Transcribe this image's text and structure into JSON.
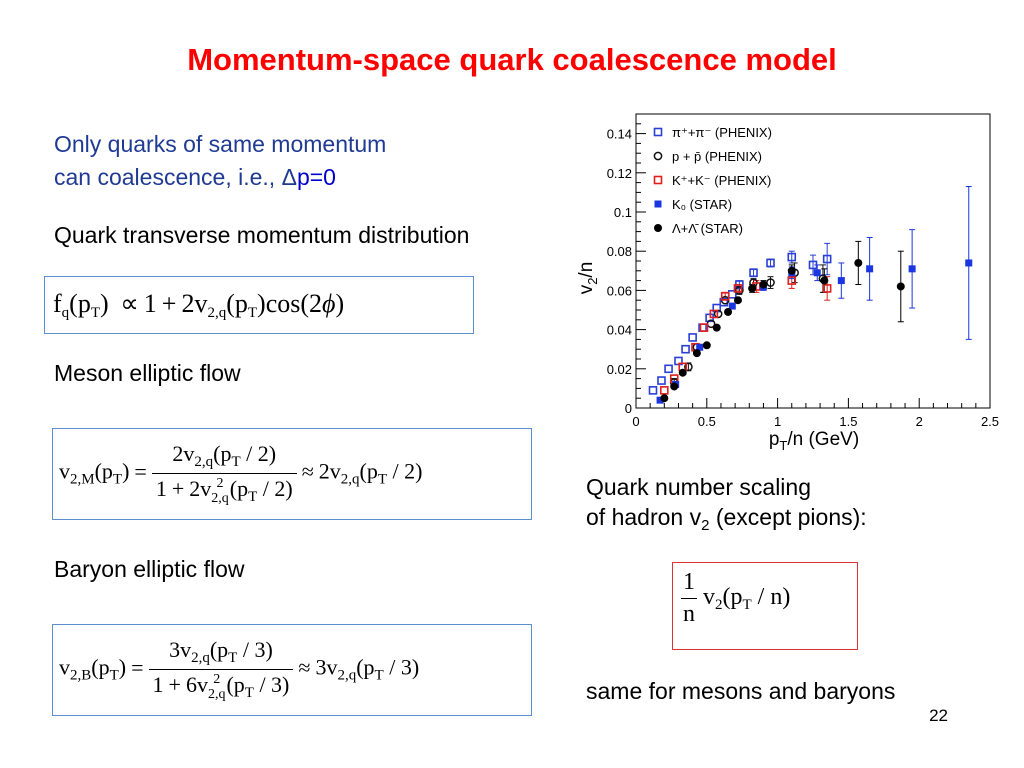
{
  "slide": {
    "title": "Momentum-space quark coalescence model",
    "intro_line1": "Only quarks of same momentum",
    "intro_line2_pre": "can coalescence, i.e., Δ",
    "intro_line2_post": "p=0",
    "quark_label": "Quark transverse momentum distribution",
    "meson_label": "Meson elliptic flow",
    "baryon_label": "Baryon elliptic flow",
    "scaling_line1": "Quark number scaling",
    "scaling_line2_pre": "of hadron v",
    "scaling_line2_sub": "2",
    "scaling_line2_post": " (except pions):",
    "same_label": "same for mesons and baryons",
    "page_number": "22",
    "accent_color": "#ff0000",
    "text_blue": "#1f3a93"
  },
  "chart_data": {
    "type": "scatter",
    "xlabel_main": "p",
    "xlabel_sub": "T",
    "xlabel_rest": "/n (GeV)",
    "ylabel_main": "v",
    "ylabel_sub": "2",
    "ylabel_rest": "/n",
    "xlim": [
      0,
      2.5
    ],
    "ylim": [
      0,
      0.15
    ],
    "xticks": [
      {
        "v": 0,
        "label": "0"
      },
      {
        "v": 0.5,
        "label": "0.5"
      },
      {
        "v": 1,
        "label": "1"
      },
      {
        "v": 1.5,
        "label": "1.5"
      },
      {
        "v": 2,
        "label": "2"
      },
      {
        "v": 2.5,
        "label": "2.5"
      }
    ],
    "yticks": [
      {
        "v": 0,
        "label": "0"
      },
      {
        "v": 0.02,
        "label": "0.02"
      },
      {
        "v": 0.04,
        "label": "0.04"
      },
      {
        "v": 0.06,
        "label": "0.06"
      },
      {
        "v": 0.08,
        "label": "0.08"
      },
      {
        "v": 0.1,
        "label": "0.1"
      },
      {
        "v": 0.12,
        "label": "0.12"
      },
      {
        "v": 0.14,
        "label": "0.14"
      }
    ],
    "legend_placement": "top-left",
    "series": [
      {
        "name": "π⁺+π⁻ (PHENIX)",
        "legend_main": "π",
        "legend_sup": "+",
        "legend_mid": "+π",
        "legend_sup2": "−",
        "legend_tail": " (PHENIX)",
        "marker": "open-square",
        "color": "#2a3fd6",
        "points": [
          [
            0.12,
            0.009
          ],
          [
            0.18,
            0.014
          ],
          [
            0.23,
            0.02
          ],
          [
            0.3,
            0.024
          ],
          [
            0.35,
            0.03
          ],
          [
            0.4,
            0.036
          ],
          [
            0.47,
            0.041
          ],
          [
            0.52,
            0.046
          ],
          [
            0.57,
            0.051
          ],
          [
            0.62,
            0.054
          ],
          [
            0.68,
            0.058
          ],
          [
            0.73,
            0.063
          ],
          [
            0.83,
            0.069
          ],
          [
            0.95,
            0.074
          ],
          [
            1.1,
            0.077
          ],
          [
            1.25,
            0.073
          ],
          [
            1.35,
            0.076
          ]
        ],
        "errors": [
          0.001,
          0.001,
          0.001,
          0.001,
          0.001,
          0.001,
          0.001,
          0.001,
          0.001,
          0.001,
          0.001,
          0.002,
          0.002,
          0.002,
          0.003,
          0.005,
          0.008
        ]
      },
      {
        "name": "p + p̄ (PHENIX)",
        "legend_main": "p + p̄",
        "legend_sup": "",
        "legend_mid": "",
        "legend_sup2": "",
        "legend_tail": " (PHENIX)",
        "marker": "open-circle",
        "color": "#111111",
        "points": [
          [
            0.27,
            0.013
          ],
          [
            0.37,
            0.021
          ],
          [
            0.43,
            0.031
          ],
          [
            0.53,
            0.043
          ],
          [
            0.58,
            0.048
          ],
          [
            0.63,
            0.055
          ],
          [
            0.73,
            0.06
          ],
          [
            0.83,
            0.064
          ],
          [
            0.95,
            0.064
          ],
          [
            1.12,
            0.069
          ],
          [
            1.32,
            0.066
          ]
        ],
        "errors": [
          0.002,
          0.002,
          0.001,
          0.001,
          0.001,
          0.001,
          0.002,
          0.002,
          0.003,
          0.005,
          0.007
        ]
      },
      {
        "name": "K⁺+K⁻ (PHENIX)",
        "legend_main": "K",
        "legend_sup": "+",
        "legend_mid": "+K",
        "legend_sup2": "−",
        "legend_tail": " (PHENIX)",
        "marker": "open-square",
        "color": "#e02020",
        "points": [
          [
            0.2,
            0.009
          ],
          [
            0.27,
            0.015
          ],
          [
            0.33,
            0.021
          ],
          [
            0.42,
            0.031
          ],
          [
            0.48,
            0.041
          ],
          [
            0.55,
            0.048
          ],
          [
            0.63,
            0.057
          ],
          [
            0.72,
            0.061
          ],
          [
            0.85,
            0.062
          ],
          [
            1.1,
            0.065
          ],
          [
            1.35,
            0.061
          ]
        ],
        "errors": [
          0.001,
          0.001,
          0.001,
          0.001,
          0.001,
          0.001,
          0.002,
          0.002,
          0.003,
          0.004,
          0.006
        ]
      },
      {
        "name": "K₀ (STAR)",
        "legend_main": "K",
        "legend_sub": "0",
        "legend_tail": "   (STAR)",
        "marker": "filled-square",
        "color": "#1a36e0",
        "points": [
          [
            0.17,
            0.004
          ],
          [
            0.28,
            0.012
          ],
          [
            0.45,
            0.031
          ],
          [
            0.68,
            0.052
          ],
          [
            0.9,
            0.062
          ],
          [
            1.1,
            0.069
          ],
          [
            1.28,
            0.069
          ],
          [
            1.45,
            0.065
          ],
          [
            1.65,
            0.071
          ],
          [
            1.95,
            0.071
          ],
          [
            2.35,
            0.074
          ]
        ],
        "errors": [
          0.001,
          0.001,
          0.001,
          0.001,
          0.002,
          0.003,
          0.004,
          0.009,
          0.016,
          0.02,
          0.039
        ]
      },
      {
        "name": "Λ+Λ̄ (STAR)",
        "legend_main": "Λ+Λ̄",
        "legend_tail": " (STAR)",
        "marker": "filled-circle",
        "color": "#000000",
        "points": [
          [
            0.2,
            0.005
          ],
          [
            0.27,
            0.011
          ],
          [
            0.33,
            0.018
          ],
          [
            0.43,
            0.028
          ],
          [
            0.5,
            0.032
          ],
          [
            0.57,
            0.041
          ],
          [
            0.65,
            0.049
          ],
          [
            0.72,
            0.055
          ],
          [
            0.82,
            0.061
          ],
          [
            0.9,
            0.063
          ],
          [
            1.1,
            0.07
          ],
          [
            1.33,
            0.065
          ],
          [
            1.57,
            0.074
          ],
          [
            1.87,
            0.062
          ]
        ],
        "errors": [
          0.001,
          0.001,
          0.001,
          0.001,
          0.001,
          0.001,
          0.001,
          0.001,
          0.002,
          0.002,
          0.003,
          0.006,
          0.011,
          0.018
        ]
      }
    ]
  }
}
